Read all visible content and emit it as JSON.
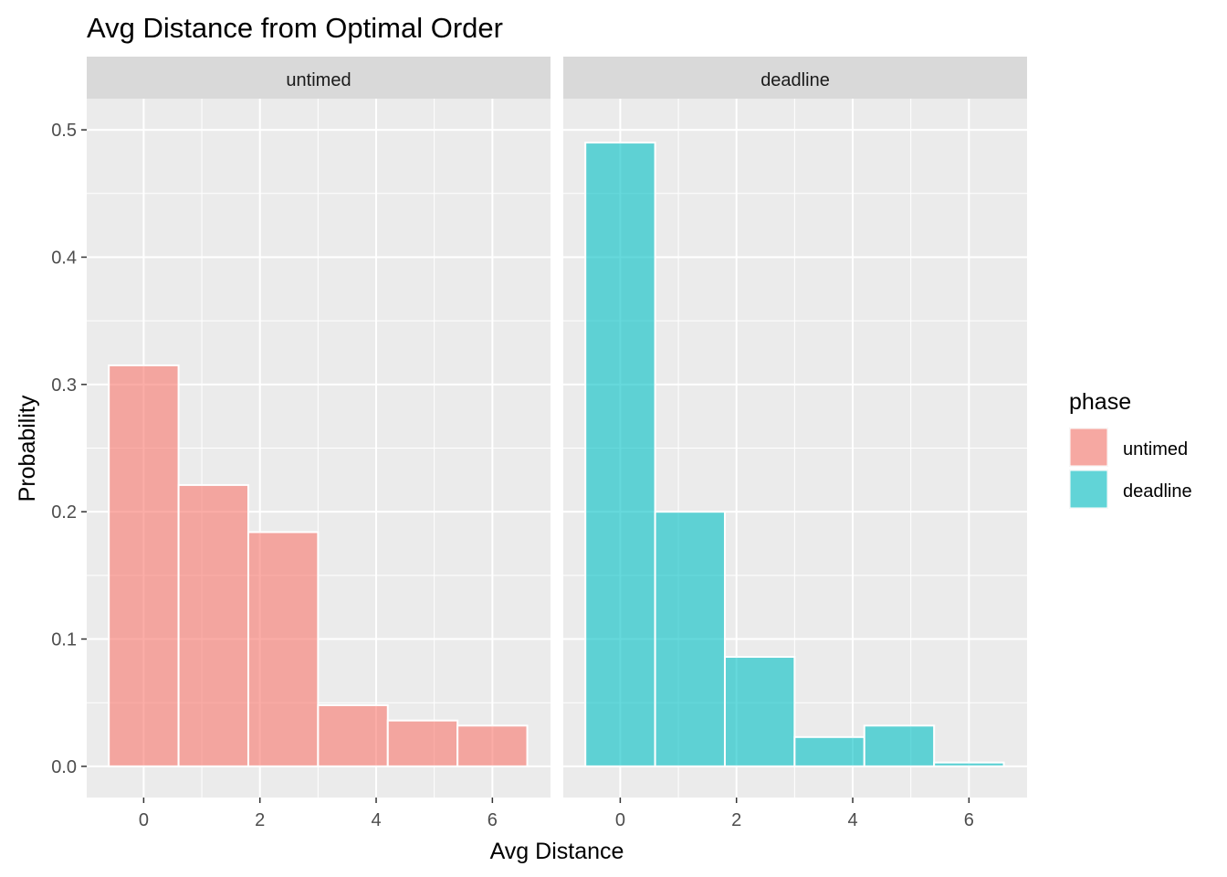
{
  "chart_data": {
    "type": "bar",
    "title": "Avg Distance from Optimal Order",
    "xlabel": "Avg Distance",
    "ylabel": "Probability",
    "xlim": [
      -0.98,
      7.0
    ],
    "ylim": [
      -0.0245,
      0.5245
    ],
    "x_ticks": [
      0,
      2,
      4,
      6
    ],
    "y_ticks": [
      0.0,
      0.1,
      0.2,
      0.3,
      0.4,
      0.5
    ],
    "x_tick_labels": [
      "0",
      "2",
      "4",
      "6"
    ],
    "y_tick_labels": [
      "0.0",
      "0.1",
      "0.2",
      "0.3",
      "0.4",
      "0.5"
    ],
    "bin_width": 1.2,
    "grid": true,
    "legend": {
      "title": "phase",
      "placement": "right",
      "items": [
        {
          "label": "untimed",
          "color": "#F8766D"
        },
        {
          "label": "deadline",
          "color": "#00BFC4"
        }
      ]
    },
    "panels": [
      {
        "strip": "untimed",
        "color": "#F8766D",
        "bins": [
          {
            "x": 0.0,
            "value": 0.315
          },
          {
            "x": 1.2,
            "value": 0.221
          },
          {
            "x": 2.4,
            "value": 0.184
          },
          {
            "x": 3.6,
            "value": 0.048
          },
          {
            "x": 4.8,
            "value": 0.036
          },
          {
            "x": 6.0,
            "value": 0.032
          }
        ]
      },
      {
        "strip": "deadline",
        "color": "#00BFC4",
        "bins": [
          {
            "x": 0.0,
            "value": 0.49
          },
          {
            "x": 1.2,
            "value": 0.2
          },
          {
            "x": 2.4,
            "value": 0.086
          },
          {
            "x": 3.6,
            "value": 0.023
          },
          {
            "x": 4.8,
            "value": 0.032
          },
          {
            "x": 6.0,
            "value": 0.003
          }
        ]
      }
    ]
  }
}
